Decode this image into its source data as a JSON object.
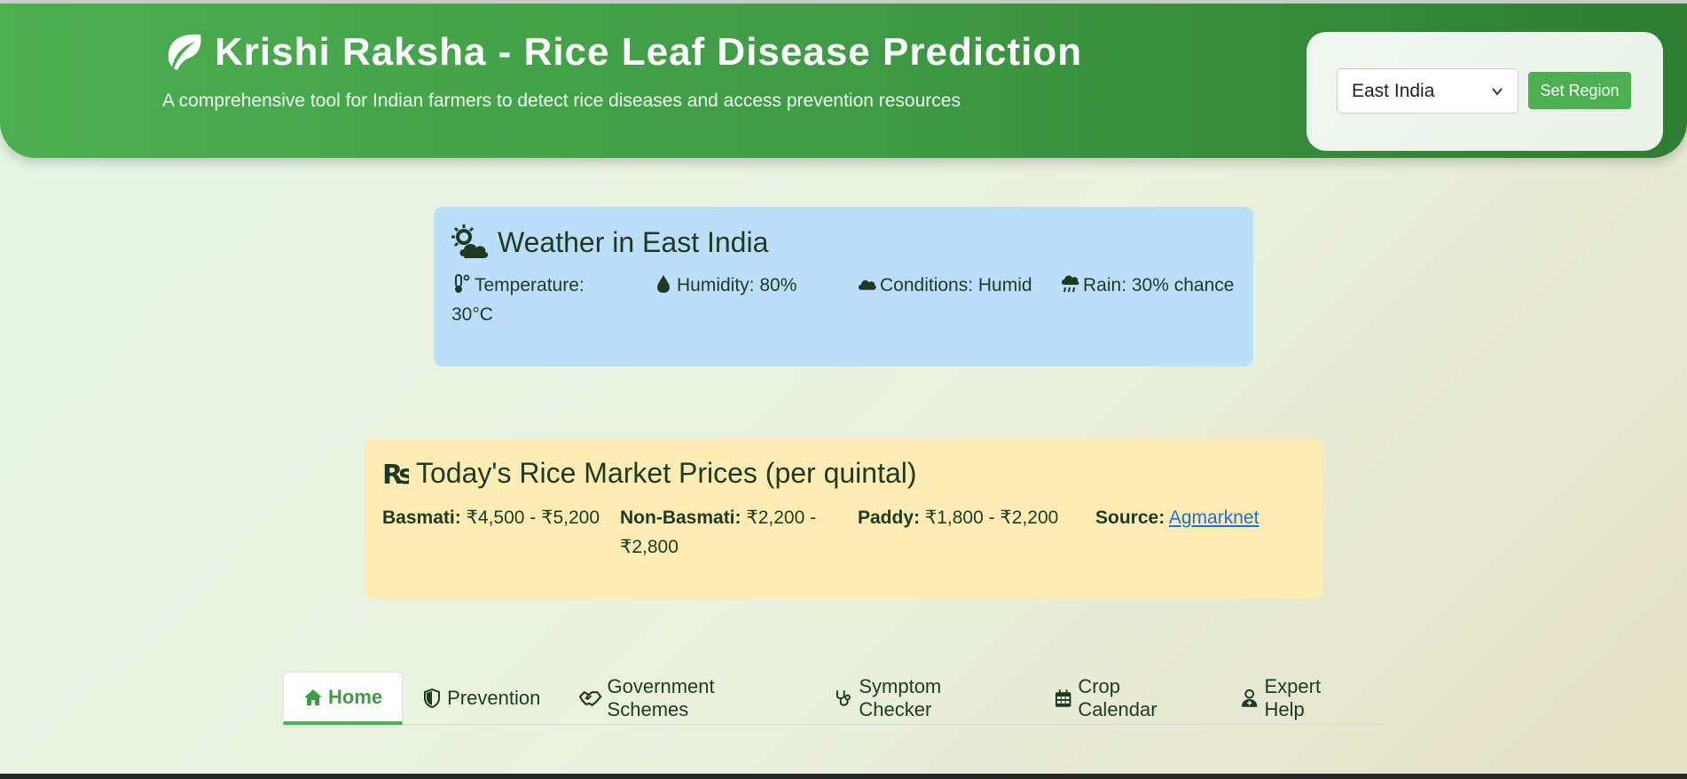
{
  "header": {
    "title": "Krishi Raksha - Rice Leaf Disease Prediction",
    "subtitle": "A comprehensive tool for Indian farmers to detect rice diseases and access prevention resources",
    "logo_icon": "leaf-icon",
    "region_selected": "East India",
    "set_region_label": "Set Region"
  },
  "weather": {
    "title": "Weather in East India",
    "icon": "sun-cloud-icon",
    "items": [
      {
        "icon": "thermometer-icon",
        "text": "Temperature: 30°C"
      },
      {
        "icon": "droplet-icon",
        "text": "Humidity: 80%"
      },
      {
        "icon": "cloud-icon",
        "text": "Conditions: Humid"
      },
      {
        "icon": "rain-cloud-icon",
        "text": "Rain: 30% chance"
      }
    ]
  },
  "market": {
    "title": "Today's Rice Market Prices (per quintal)",
    "icon": "rupee-sign-icon",
    "items": [
      {
        "label": "Basmati:",
        "value": "₹4,500 - ₹5,200"
      },
      {
        "label": "Non-Basmati:",
        "value": "₹2,200 - ₹2,800"
      },
      {
        "label": "Paddy:",
        "value": "₹1,800 - ₹2,200"
      }
    ],
    "source_label": "Source:",
    "source_link": "Agmarknet"
  },
  "tabs": [
    {
      "label": "Home",
      "icon": "home-icon",
      "active": true
    },
    {
      "label": "Prevention",
      "icon": "shield-icon"
    },
    {
      "label": "Government Schemes",
      "icon": "handshake-icon"
    },
    {
      "label": "Symptom Checker",
      "icon": "stethoscope-icon"
    },
    {
      "label": "Crop Calendar",
      "icon": "calendar-icon"
    },
    {
      "label": "Expert Help",
      "icon": "user-doctor-icon"
    }
  ],
  "colors": {
    "header_green": "#4caf50",
    "header_dark_green": "#2e7d32",
    "weather_bg": "#bbdefa",
    "market_bg": "#ffecb5",
    "link_blue": "#1f6fd6"
  }
}
